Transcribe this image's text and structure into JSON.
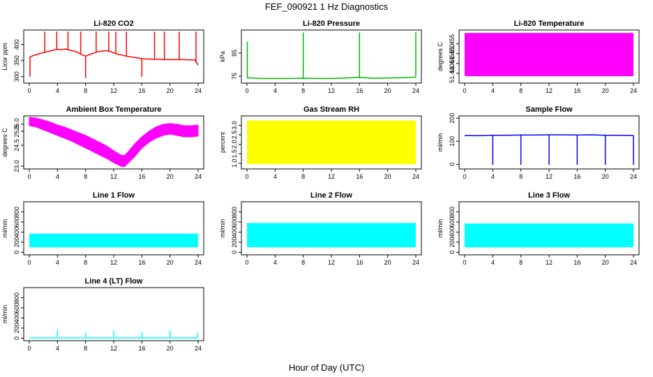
{
  "figure": {
    "title": "FEF_090921  1 Hz Diagnostics",
    "xlabel": "Hour of Day (UTC)"
  },
  "chart_data": [
    {
      "type": "line",
      "title": "Li-820 CO2",
      "ylabel": "Licor ppm",
      "color": "#ff0000",
      "xlim": [
        0,
        24
      ],
      "xticks": [
        "0",
        "4",
        "8",
        "12",
        "16",
        "20",
        "24"
      ],
      "ylim": [
        280,
        445
      ],
      "yticks": [
        {
          "value": 300,
          "label": "300"
        },
        {
          "value": 350,
          "label": "350"
        },
        {
          "value": 400,
          "label": "400"
        }
      ],
      "x": [
        0,
        0.5,
        1,
        1.5,
        2,
        2.5,
        3,
        3.5,
        4,
        4.5,
        5,
        5.5,
        6,
        6.5,
        7,
        7.5,
        8,
        8.5,
        9,
        9.5,
        10,
        10.5,
        11,
        11.5,
        12,
        12.5,
        13,
        13.5,
        14,
        14.5,
        15,
        15.5,
        16,
        16.5,
        17,
        17.5,
        18,
        18.5,
        19,
        19.5,
        20,
        20.5,
        21,
        21.5,
        22,
        22.5,
        23,
        23.5,
        24
      ],
      "values": [
        360,
        365,
        368,
        372,
        375,
        377,
        380,
        383,
        385,
        384,
        386,
        384,
        381,
        379,
        374,
        368,
        364,
        368,
        372,
        376,
        378,
        380,
        381,
        378,
        374,
        370,
        368,
        365,
        363,
        361,
        360,
        358,
        356,
        355,
        355,
        354,
        354,
        354,
        353,
        353,
        353,
        353,
        353,
        353,
        353,
        352,
        352,
        352,
        336
      ],
      "spikes": [
        {
          "x": 0.1,
          "y": 300
        },
        {
          "x": 2.2,
          "y": 440
        },
        {
          "x": 3.9,
          "y": 440
        },
        {
          "x": 5.5,
          "y": 440
        },
        {
          "x": 7.3,
          "y": 440
        },
        {
          "x": 8,
          "y": 296
        },
        {
          "x": 9.5,
          "y": 440
        },
        {
          "x": 11.3,
          "y": 440
        },
        {
          "x": 12.3,
          "y": 440
        },
        {
          "x": 13.8,
          "y": 440
        },
        {
          "x": 16,
          "y": 300
        },
        {
          "x": 17.8,
          "y": 440
        },
        {
          "x": 19.2,
          "y": 440
        },
        {
          "x": 21.3,
          "y": 440
        },
        {
          "x": 23.7,
          "y": 440
        }
      ]
    },
    {
      "type": "line",
      "title": "Li-820 Pressure",
      "ylabel": "kPa",
      "color": "#00bb00",
      "xlim": [
        0,
        24
      ],
      "xticks": [
        "0",
        "4",
        "8",
        "12",
        "16",
        "20",
        "24"
      ],
      "ylim": [
        72,
        95
      ],
      "yticks": [
        {
          "value": 75,
          "label": "75"
        },
        {
          "value": 85,
          "label": "85"
        }
      ],
      "x": [
        0,
        2,
        4,
        6,
        8,
        10,
        12,
        14,
        16,
        18,
        20,
        22,
        24
      ],
      "values": [
        74.3,
        74.0,
        74.0,
        74.0,
        74.1,
        74.0,
        74.0,
        74.2,
        74.5,
        74.1,
        74.2,
        74.3,
        74.6
      ],
      "spikes": [
        {
          "x": 0.05,
          "y": 90
        },
        {
          "x": 8,
          "y": 94
        },
        {
          "x": 16,
          "y": 94
        },
        {
          "x": 24,
          "y": 94
        }
      ]
    },
    {
      "type": "area",
      "title": "Li-820 Temperature",
      "ylabel": "degrees C",
      "color": "#ff00ff",
      "xlim": [
        0,
        24
      ],
      "xticks": [
        "0",
        "4",
        "8",
        "12",
        "16",
        "20",
        "24"
      ],
      "ylim": [
        51.435,
        51.462
      ],
      "yticks": [
        {
          "value": 51.44,
          "label": "51.440"
        },
        {
          "value": 51.445,
          "label": "51.445"
        },
        {
          "value": 51.45,
          "label": "51.450"
        },
        {
          "value": 51.455,
          "label": "51.455"
        }
      ],
      "x": [
        0,
        24
      ],
      "band": [
        51.4385,
        51.4605
      ]
    },
    {
      "type": "line",
      "title": "Ambient Box Temperature",
      "ylabel": "degrees C",
      "color": "#ff00ff",
      "xlim": [
        0,
        24
      ],
      "xticks": [
        "0",
        "4",
        "8",
        "12",
        "16",
        "20",
        "24"
      ],
      "ylim": [
        22.8,
        26.6
      ],
      "yticks": [
        {
          "value": 23.0,
          "label": "23.0"
        },
        {
          "value": 24.5,
          "label": "24.5"
        },
        {
          "value": 25.5,
          "label": "25.5"
        },
        {
          "value": 26.0,
          "label": "26.0"
        }
      ],
      "x": [
        0,
        1,
        2,
        3,
        4,
        5,
        6,
        7,
        8,
        9,
        10,
        11,
        12,
        13,
        13.5,
        14,
        15,
        16,
        17,
        18,
        19,
        20,
        21,
        22,
        23,
        24
      ],
      "upper": [
        26.5,
        26.45,
        26.3,
        26.15,
        25.95,
        25.8,
        25.6,
        25.4,
        25.2,
        24.95,
        24.7,
        24.45,
        24.1,
        23.8,
        23.75,
        24.0,
        24.6,
        25.1,
        25.5,
        25.8,
        26.0,
        26.05,
        26.0,
        25.9,
        25.9,
        25.95
      ],
      "lower": [
        25.9,
        25.8,
        25.6,
        25.4,
        25.2,
        25.0,
        24.8,
        24.55,
        24.3,
        24.05,
        23.8,
        23.55,
        23.25,
        23.0,
        22.95,
        23.2,
        23.7,
        24.3,
        24.7,
        25.0,
        25.2,
        25.3,
        25.2,
        25.1,
        25.1,
        25.15
      ]
    },
    {
      "type": "area",
      "title": "Gas Stream RH",
      "ylabel": "percent",
      "color": "#ffff00",
      "xlim": [
        0,
        24
      ],
      "xticks": [
        "0",
        "4",
        "8",
        "12",
        "16",
        "20",
        "24"
      ],
      "ylim": [
        0.7,
        3.5
      ],
      "yticks": [
        {
          "value": 1.0,
          "label": "1.0"
        },
        {
          "value": 1.5,
          "label": "1.5"
        },
        {
          "value": 2.0,
          "label": "2.0"
        },
        {
          "value": 2.5,
          "label": "2.5"
        },
        {
          "value": 3.0,
          "label": "3.0"
        }
      ],
      "x": [
        0,
        24
      ],
      "band": [
        0.95,
        3.25
      ]
    },
    {
      "type": "line",
      "title": "Sample Flow",
      "ylabel": "ml/min",
      "color": "#0000ff",
      "xlim": [
        0,
        24
      ],
      "xticks": [
        "0",
        "4",
        "8",
        "12",
        "16",
        "20",
        "24"
      ],
      "ylim": [
        -20,
        210
      ],
      "yticks": [
        {
          "value": 0,
          "label": "0"
        },
        {
          "value": 100,
          "label": "100"
        },
        {
          "value": 200,
          "label": "200"
        }
      ],
      "x": [
        0,
        2,
        4,
        6,
        8,
        10,
        12,
        14,
        16,
        18,
        20,
        22,
        24
      ],
      "values": [
        125,
        124,
        126,
        126,
        127,
        127,
        128,
        128,
        127,
        128,
        126,
        126,
        125
      ],
      "spikes": [
        {
          "x": 4,
          "y": -2
        },
        {
          "x": 8,
          "y": -2
        },
        {
          "x": 12,
          "y": -2
        },
        {
          "x": 16,
          "y": -2
        },
        {
          "x": 20,
          "y": -2
        },
        {
          "x": 24,
          "y": -2
        }
      ]
    },
    {
      "type": "area",
      "title": "Line 1 Flow",
      "ylabel": "ml/min",
      "color": "#00ffff",
      "xlim": [
        0,
        24
      ],
      "xticks": [
        "0",
        "4",
        "8",
        "12",
        "16",
        "20",
        "24"
      ],
      "ylim": [
        -50,
        1000
      ],
      "yticks": [
        {
          "value": 0,
          "label": "0"
        },
        {
          "value": 200,
          "label": "200"
        },
        {
          "value": 400,
          "label": "400"
        },
        {
          "value": 600,
          "label": "600"
        },
        {
          "value": 800,
          "label": "800"
        }
      ],
      "x": [
        0,
        24
      ],
      "band": [
        100,
        370
      ]
    },
    {
      "type": "area",
      "title": "Line 2 Flow",
      "ylabel": "ml/min",
      "color": "#00ffff",
      "xlim": [
        0,
        24
      ],
      "xticks": [
        "0",
        "4",
        "8",
        "12",
        "16",
        "20",
        "24"
      ],
      "ylim": [
        -50,
        1000
      ],
      "yticks": [
        {
          "value": 0,
          "label": "0"
        },
        {
          "value": 200,
          "label": "200"
        },
        {
          "value": 400,
          "label": "400"
        },
        {
          "value": 600,
          "label": "600"
        },
        {
          "value": 800,
          "label": "800"
        }
      ],
      "x": [
        0,
        24
      ],
      "band": [
        100,
        580
      ]
    },
    {
      "type": "area",
      "title": "Line 3 Flow",
      "ylabel": "ml/min",
      "color": "#00ffff",
      "xlim": [
        0,
        24
      ],
      "xticks": [
        "0",
        "4",
        "8",
        "12",
        "16",
        "20",
        "24"
      ],
      "ylim": [
        -50,
        1000
      ],
      "yticks": [
        {
          "value": 0,
          "label": "0"
        },
        {
          "value": 200,
          "label": "200"
        },
        {
          "value": 400,
          "label": "400"
        },
        {
          "value": 600,
          "label": "600"
        },
        {
          "value": 800,
          "label": "800"
        }
      ],
      "x": [
        0,
        24
      ],
      "band": [
        100,
        570
      ]
    },
    {
      "type": "line",
      "title": "Line 4 (LT) Flow",
      "ylabel": "ml/min",
      "color": "#00ffff",
      "xlim": [
        0,
        24
      ],
      "xticks": [
        "0",
        "4",
        "8",
        "12",
        "16",
        "20",
        "24"
      ],
      "ylim": [
        -50,
        1000
      ],
      "yticks": [
        {
          "value": 0,
          "label": "0"
        },
        {
          "value": 200,
          "label": "200"
        },
        {
          "value": 400,
          "label": "400"
        },
        {
          "value": 600,
          "label": "600"
        },
        {
          "value": 800,
          "label": "800"
        }
      ],
      "x": [
        0,
        24
      ],
      "values": [
        5,
        5
      ],
      "spikes": [
        {
          "x": 4,
          "y": 160
        },
        {
          "x": 8,
          "y": 110
        },
        {
          "x": 12,
          "y": 160
        },
        {
          "x": 16,
          "y": 120
        },
        {
          "x": 20,
          "y": 160
        },
        {
          "x": 23.9,
          "y": 110
        }
      ]
    }
  ]
}
